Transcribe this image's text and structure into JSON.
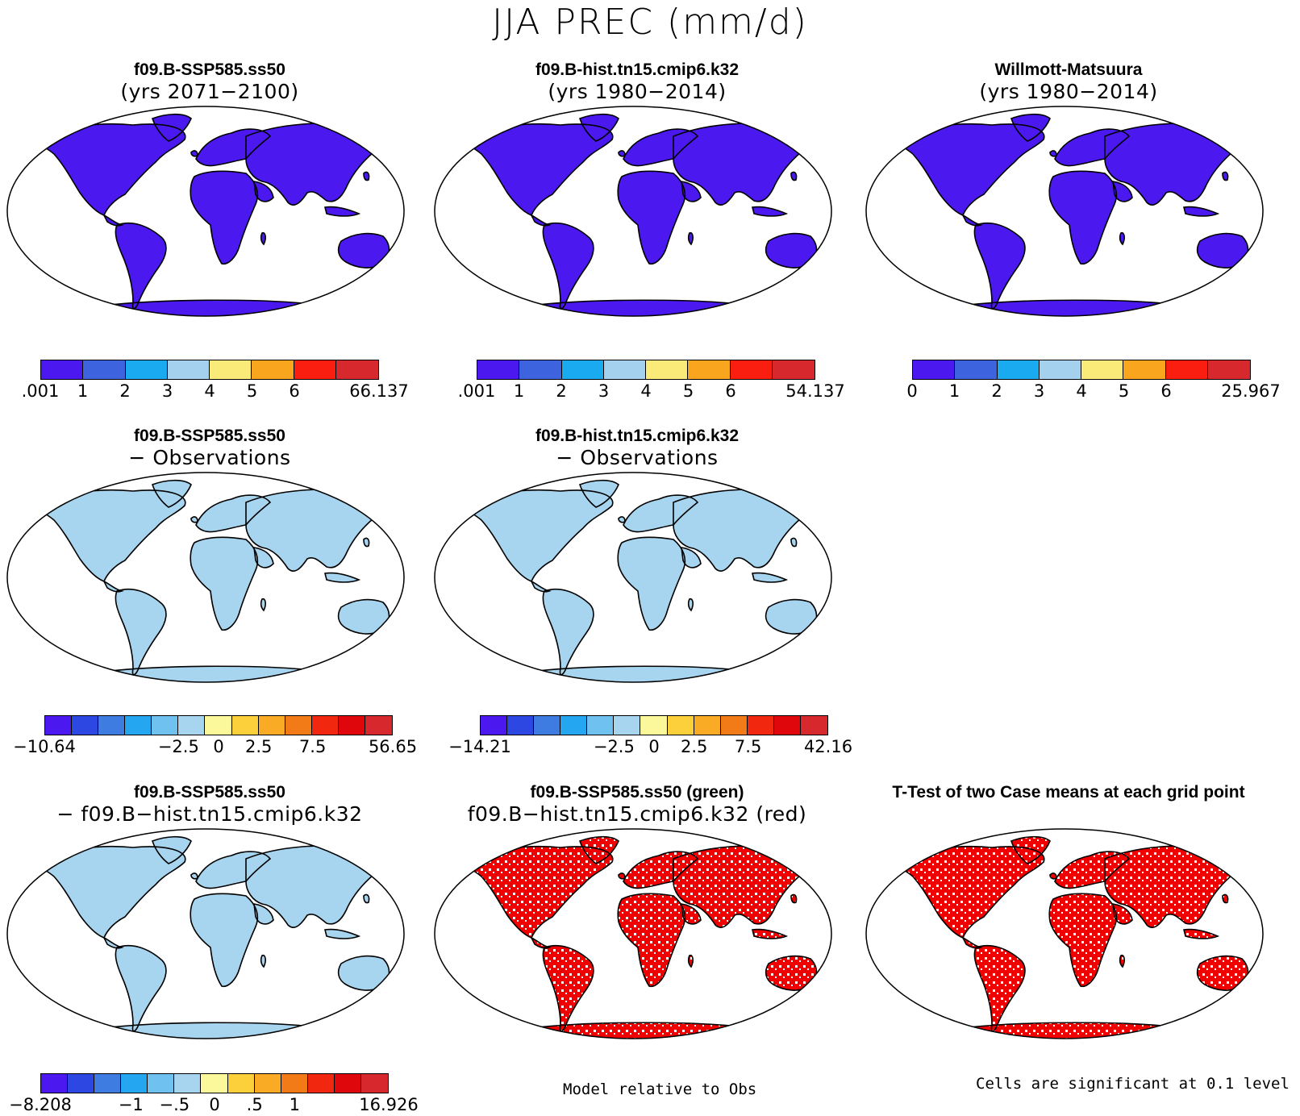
{
  "title": "JJA PREC (mm/d)",
  "colors": {
    "abs": [
      "#4B19F0",
      "#3E63DE",
      "#1AAAF0",
      "#A4D2EE",
      "#FAEB78",
      "#F9A51E",
      "#F91E0F",
      "#D7282D"
    ],
    "diff": [
      "#4B19F0",
      "#2D47E3",
      "#3F7CE2",
      "#24A6F0",
      "#6FC2EF",
      "#A7D4EE",
      "#FBF79B",
      "#FBD03A",
      "#F9AB25",
      "#F27A17",
      "#F12710",
      "#DF070C",
      "#D7282D"
    ]
  },
  "panels": [
    {
      "title": "f09.B-SSP585.ss50",
      "subtitle": "(yrs 2071−2100)",
      "map_type": "abs-future"
    },
    {
      "title": "f09.B-hist.tn15.cmip6.k32",
      "subtitle": "(yrs 1980−2014)",
      "map_type": "abs-hist"
    },
    {
      "title": "Willmott-Matsuura",
      "subtitle": "(yrs 1980−2014)",
      "map_type": "abs-obs"
    },
    {
      "title": "f09.B-SSP585.ss50",
      "subtitle": "− Observations",
      "map_type": "diff-future"
    },
    {
      "title": "f09.B-hist.tn15.cmip6.k32",
      "subtitle": "− Observations",
      "map_type": "diff-hist"
    },
    {
      "title": "f09.B-SSP585.ss50",
      "subtitle": "− f09.B−hist.tn15.cmip6.k32",
      "map_type": "diff-cases"
    },
    {
      "title": "f09.B-SSP585.ss50 (green)",
      "subtitle": "f09.B−hist.tn15.cmip6.k32 (red)",
      "map_type": "sig-compare"
    },
    {
      "title": "T-Test of two Case means at each grid point",
      "subtitle": "",
      "map_type": "sig-ttest"
    }
  ],
  "colorbars": [
    {
      "labels": [
        ".001",
        "1",
        "2",
        "3",
        "4",
        "5",
        "6",
        "66.137"
      ]
    },
    {
      "labels": [
        ".001",
        "1",
        "2",
        "3",
        "4",
        "5",
        "6",
        "54.137"
      ]
    },
    {
      "labels": [
        "0",
        "1",
        "2",
        "3",
        "4",
        "5",
        "6",
        "25.967"
      ]
    },
    {
      "labels": [
        "−10.64",
        "−2.5",
        "0",
        "2.5",
        "7.5",
        "56.65"
      ]
    },
    {
      "labels": [
        "−14.21",
        "−2.5",
        "0",
        "2.5",
        "7.5",
        "42.16"
      ]
    },
    {
      "labels": [
        "−8.208",
        "−1",
        "−.5",
        "0",
        ".5",
        "1",
        "16.926"
      ]
    }
  ],
  "notes": {
    "model_relative": "Model relative to Obs",
    "significance": "Cells are significant at 0.1 level"
  }
}
